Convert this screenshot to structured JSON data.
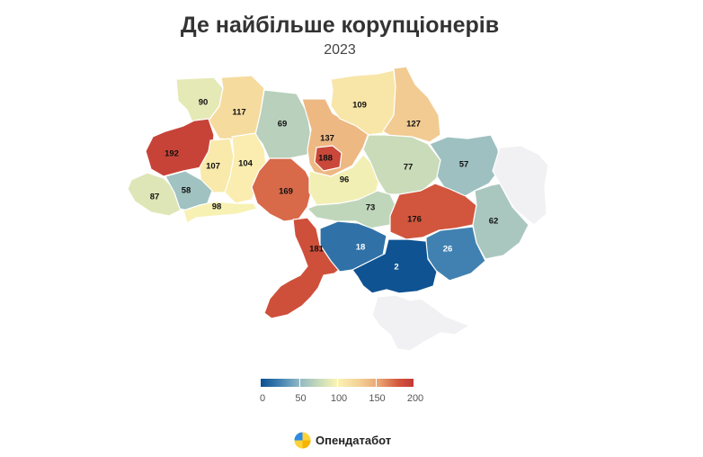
{
  "header": {
    "title": "Де найбільше корупціонерів",
    "subtitle": "2023"
  },
  "legend": {
    "min": 0,
    "max": 200,
    "ticks": [
      "0",
      "50",
      "100",
      "150",
      "200"
    ],
    "colors": [
      "#0b4f8f",
      "#8fb7c4",
      "#fbf3b4",
      "#e9a06f",
      "#c23a36"
    ]
  },
  "brand": {
    "name": "Опендатабот",
    "icon": "opendatabot-logo-icon"
  },
  "no_data_color": "#f1f1f4",
  "map_data": {
    "type": "choropleth",
    "scale": [
      0,
      200
    ],
    "regions": [
      {
        "id": "volyn",
        "value": 90
      },
      {
        "id": "rivne",
        "value": 117
      },
      {
        "id": "zhytomyr",
        "value": 69
      },
      {
        "id": "kyiv-oblast",
        "value": 137
      },
      {
        "id": "kyiv-city",
        "value": 188
      },
      {
        "id": "chernihiv",
        "value": 109
      },
      {
        "id": "sumy",
        "value": 127
      },
      {
        "id": "lviv",
        "value": 192
      },
      {
        "id": "ternopil",
        "value": 107
      },
      {
        "id": "khmelnytskyi",
        "value": 104
      },
      {
        "id": "zakarpattia",
        "value": 87
      },
      {
        "id": "ivano-frankivsk",
        "value": 58
      },
      {
        "id": "chernivtsi",
        "value": 98
      },
      {
        "id": "vinnytsia",
        "value": 169
      },
      {
        "id": "cherkasy",
        "value": 96
      },
      {
        "id": "poltava",
        "value": 77
      },
      {
        "id": "kharkiv",
        "value": 57
      },
      {
        "id": "kirovohrad",
        "value": 73
      },
      {
        "id": "dnipropetrovsk",
        "value": 176
      },
      {
        "id": "donetsk",
        "value": 62
      },
      {
        "id": "odesa",
        "value": 181
      },
      {
        "id": "mykolaiv",
        "value": 18
      },
      {
        "id": "zaporizhzhia",
        "value": 26
      },
      {
        "id": "kherson",
        "value": 2
      },
      {
        "id": "luhansk",
        "value": null
      },
      {
        "id": "crimea",
        "value": null
      }
    ]
  }
}
